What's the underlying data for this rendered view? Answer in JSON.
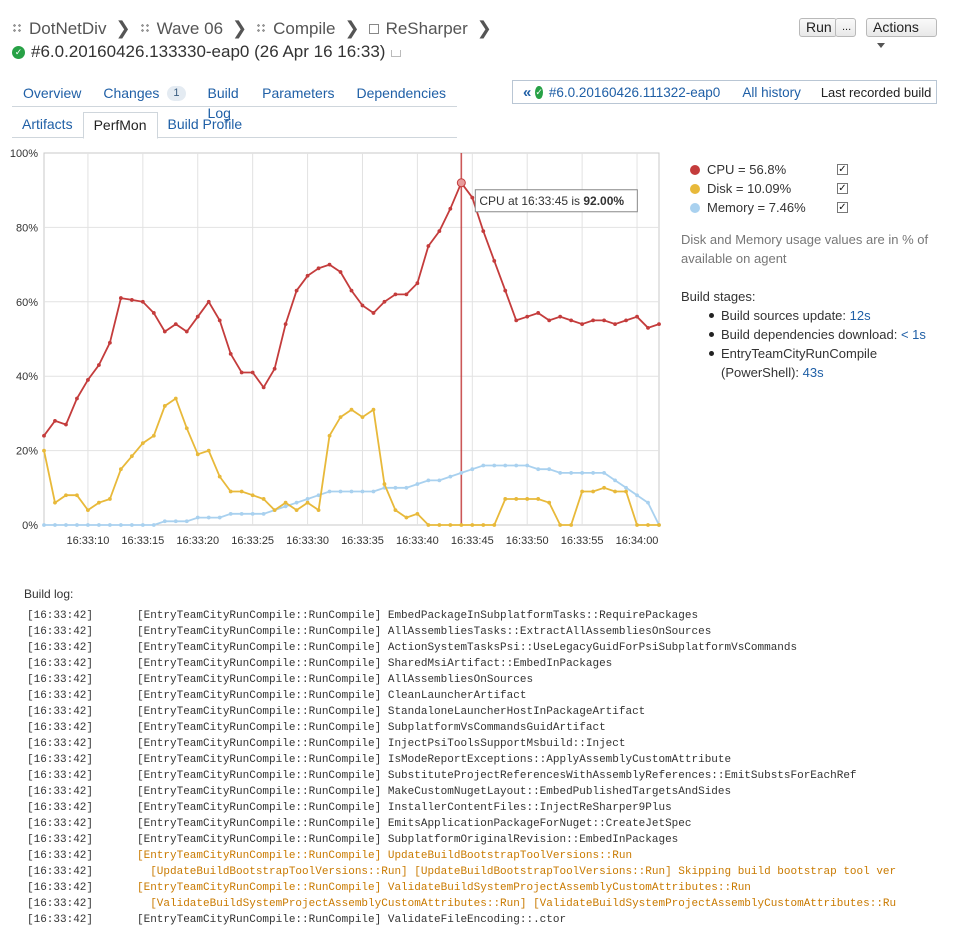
{
  "breadcrumb": {
    "items": [
      "DotNetDiv",
      "Wave 06",
      "Compile",
      "ReSharper"
    ]
  },
  "build": {
    "title": "#6.0.20160426.133330-eap0 (26 Apr 16 16:33)"
  },
  "toolbar": {
    "run_label": "Run",
    "more_label": "...",
    "actions_label": "Actions"
  },
  "tabs": {
    "row1": [
      {
        "label": "Overview"
      },
      {
        "label": "Changes",
        "badge": "1"
      },
      {
        "label": "Build Log"
      },
      {
        "label": "Parameters"
      },
      {
        "label": "Dependencies"
      }
    ],
    "row2": [
      {
        "label": "Artifacts"
      },
      {
        "label": "PerfMon",
        "active": true
      },
      {
        "label": "Build Profile"
      }
    ]
  },
  "history": {
    "prev_build": "#6.0.20160426.111322-eap0",
    "all_history": "All history",
    "last_recorded": "Last recorded build"
  },
  "chart_data": {
    "type": "line",
    "ylim": [
      0,
      100
    ],
    "y_ticks": [
      "0%",
      "20%",
      "40%",
      "60%",
      "80%",
      "100%"
    ],
    "x_start": "16:33:06",
    "x_tick_labels": [
      "16:33:10",
      "16:33:15",
      "16:33:20",
      "16:33:25",
      "16:33:30",
      "16:33:35",
      "16:33:40",
      "16:33:45",
      "16:33:50",
      "16:33:55",
      "16:34:00"
    ],
    "series": [
      {
        "name": "CPU",
        "color": "#c43c3c",
        "values": [
          24,
          28,
          27,
          34,
          39,
          43,
          49,
          61,
          60.5,
          60,
          57,
          52,
          54,
          52,
          56,
          60,
          55,
          46,
          41,
          41,
          37,
          42,
          54,
          63,
          67,
          69,
          70,
          68,
          63,
          59,
          57,
          60,
          62,
          62,
          65,
          75,
          79,
          85,
          92,
          88,
          79,
          71,
          63,
          55,
          56,
          57,
          55,
          56,
          55,
          54,
          55,
          55,
          54,
          55,
          56,
          53,
          54
        ]
      },
      {
        "name": "Disk",
        "color": "#e8b93a",
        "values": [
          20,
          6,
          8,
          8,
          4,
          6,
          7,
          15,
          18.5,
          22,
          24,
          32,
          34,
          26,
          19,
          20,
          13,
          9,
          9,
          8,
          7,
          4,
          6,
          4,
          6,
          4,
          24,
          29,
          31,
          29,
          31,
          11,
          4,
          2,
          3,
          0,
          0,
          0,
          0,
          0,
          0,
          0,
          7,
          7,
          7,
          7,
          6,
          0,
          0,
          9,
          9,
          10,
          9,
          9,
          0,
          0,
          0
        ]
      },
      {
        "name": "Memory",
        "color": "#a9d1ef",
        "values": [
          0,
          0,
          0,
          0,
          0,
          0,
          0,
          0,
          0,
          0,
          0,
          1,
          1,
          1,
          2,
          2,
          2,
          3,
          3,
          3,
          3,
          4,
          5,
          6,
          7,
          8,
          9,
          9,
          9,
          9,
          9,
          10,
          10,
          10,
          11,
          12,
          12,
          13,
          14,
          15,
          16,
          16,
          16,
          16,
          16,
          15,
          15,
          14,
          14,
          14,
          14,
          14,
          12,
          10,
          8,
          6,
          0
        ]
      }
    ],
    "tooltip": {
      "prefix": "CPU at 16:33:45 is ",
      "value": "92.00%",
      "index": 38
    }
  },
  "legend": {
    "items": [
      {
        "label": "CPU = 56.8%",
        "color": "#c43c3c"
      },
      {
        "label": "Disk = 10.09%",
        "color": "#e8b93a"
      },
      {
        "label": "Memory = 7.46%",
        "color": "#a9d1ef"
      }
    ],
    "note": "Disk and Memory usage values are in % of available on agent"
  },
  "stages": {
    "title": "Build stages:",
    "items": [
      {
        "name": "Build sources update: ",
        "time": "12s"
      },
      {
        "name": "Build dependencies download: ",
        "time": "< 1s"
      },
      {
        "name": "EntryTeamCityRunCompile (PowerShell): ",
        "time": "43s"
      }
    ]
  },
  "build_log": {
    "title": "Build log:",
    "lines": [
      {
        "ts": "[16:33:42]",
        "msg": "[EntryTeamCityRunCompile::RunCompile] EmbedPackageInSubplatformTasks::RequirePackages"
      },
      {
        "ts": "[16:33:42]",
        "msg": "[EntryTeamCityRunCompile::RunCompile] AllAssembliesTasks::ExtractAllAssembliesOnSources"
      },
      {
        "ts": "[16:33:42]",
        "msg": "[EntryTeamCityRunCompile::RunCompile] ActionSystemTasksPsi::UseLegacyGuidForPsiSubplatformVsCommands"
      },
      {
        "ts": "[16:33:42]",
        "msg": "[EntryTeamCityRunCompile::RunCompile] SharedMsiArtifact::EmbedInPackages"
      },
      {
        "ts": "[16:33:42]",
        "msg": "[EntryTeamCityRunCompile::RunCompile] AllAssembliesOnSources"
      },
      {
        "ts": "[16:33:42]",
        "msg": "[EntryTeamCityRunCompile::RunCompile] CleanLauncherArtifact"
      },
      {
        "ts": "[16:33:42]",
        "msg": "[EntryTeamCityRunCompile::RunCompile] StandaloneLauncherHostInPackageArtifact"
      },
      {
        "ts": "[16:33:42]",
        "msg": "[EntryTeamCityRunCompile::RunCompile] SubplatformVsCommandsGuidArtifact"
      },
      {
        "ts": "[16:33:42]",
        "msg": "[EntryTeamCityRunCompile::RunCompile] InjectPsiToolsSupportMsbuild::Inject"
      },
      {
        "ts": "[16:33:42]",
        "msg": "[EntryTeamCityRunCompile::RunCompile] IsModeReportExceptions::ApplyAssemblyCustomAttribute"
      },
      {
        "ts": "[16:33:42]",
        "msg": "[EntryTeamCityRunCompile::RunCompile] SubstituteProjectReferencesWithAssemblyReferences::EmitSubstsForEachRef"
      },
      {
        "ts": "[16:33:42]",
        "msg": "[EntryTeamCityRunCompile::RunCompile] MakeCustomNugetLayout::EmbedPublishedTargetsAndSides"
      },
      {
        "ts": "[16:33:42]",
        "msg": "[EntryTeamCityRunCompile::RunCompile] InstallerContentFiles::InjectReSharper9Plus"
      },
      {
        "ts": "[16:33:42]",
        "msg": "[EntryTeamCityRunCompile::RunCompile] EmitsApplicationPackageForNuget::CreateJetSpec"
      },
      {
        "ts": "[16:33:42]",
        "msg": "[EntryTeamCityRunCompile::RunCompile] SubplatformOriginalRevision::EmbedInPackages"
      },
      {
        "ts": "[16:33:42]",
        "msg": "[EntryTeamCityRunCompile::RunCompile] UpdateBuildBootstrapToolVersions::Run",
        "warn": true
      },
      {
        "ts": "[16:33:42]",
        "msg": "  [UpdateBuildBootstrapToolVersions::Run] [UpdateBuildBootstrapToolVersions::Run] Skipping build bootstrap tool ver",
        "warn": true
      },
      {
        "ts": "[16:33:42]",
        "msg": "[EntryTeamCityRunCompile::RunCompile] ValidateBuildSystemProjectAssemblyCustomAttributes::Run",
        "warn": true
      },
      {
        "ts": "[16:33:42]",
        "msg": "  [ValidateBuildSystemProjectAssemblyCustomAttributes::Run] [ValidateBuildSystemProjectAssemblyCustomAttributes::Ru",
        "warn": true
      },
      {
        "ts": "[16:33:42]",
        "msg": "[EntryTeamCityRunCompile::RunCompile] ValidateFileEncoding::.ctor"
      }
    ]
  }
}
